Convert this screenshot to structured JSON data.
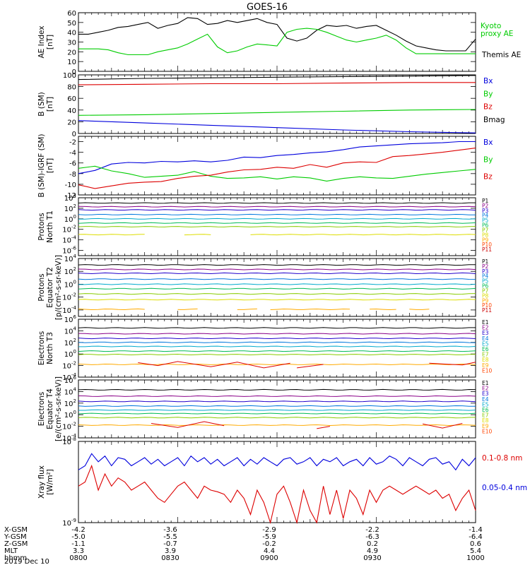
{
  "title": "GOES-16",
  "colors": {
    "black": "#000000",
    "blue": "#0000dd",
    "green": "#00cc00",
    "red": "#dd0000",
    "channels": [
      "#000000",
      "#8a0088",
      "#2200cc",
      "#0077dd",
      "#00aacc",
      "#00bb55",
      "#88cc00",
      "#dddd00",
      "#ffaa00",
      "#ff4400",
      "#cc0000"
    ]
  },
  "footer": {
    "rows": [
      {
        "label": "X-GSM",
        "values": [
          "-4.2",
          "-3.6",
          "-2.9",
          "-2.2",
          "-1.4"
        ]
      },
      {
        "label": "Y-GSM",
        "values": [
          "-5.0",
          "-5.5",
          "-5.9",
          "-6.3",
          "-6.4"
        ]
      },
      {
        "label": "Z-GSM",
        "values": [
          "-1.1",
          "-0.7",
          "-0.2",
          "0.2",
          "0.6"
        ]
      },
      {
        "label": "MLT",
        "values": [
          "3.3",
          "3.9",
          "4.4",
          "4.9",
          "5.4"
        ]
      },
      {
        "label": "hhmm",
        "values": [
          "0800",
          "0830",
          "0900",
          "0930",
          "1000"
        ]
      }
    ],
    "date": "2019 Dec 10"
  },
  "chart_data": [
    {
      "type": "line",
      "ylabel": [
        "AE Index",
        "[nT]"
      ],
      "ylim": [
        0,
        60
      ],
      "yticks": [
        "0",
        "10",
        "20",
        "30",
        "40",
        "50",
        "60"
      ],
      "legend": [
        {
          "text": "Kyoto",
          "color": "#00cc00"
        },
        {
          "text": "proxy AE",
          "color": "#00cc00"
        },
        {
          "text": "Themis AE",
          "color": "#000000"
        }
      ],
      "x": [
        0,
        3,
        6,
        9,
        12,
        15,
        18,
        21,
        24,
        27,
        30,
        33,
        36,
        39,
        42,
        45,
        48,
        51,
        54,
        57,
        60,
        63,
        66,
        69,
        72,
        75,
        78,
        81,
        84,
        87,
        90,
        93,
        96,
        99,
        102,
        105,
        108,
        111,
        114,
        117,
        120
      ],
      "series": [
        {
          "name": "Themis AE",
          "color": "#000000",
          "values": [
            38,
            38,
            40,
            42,
            45,
            46,
            48,
            50,
            44,
            47,
            49,
            55,
            54,
            48,
            49,
            52,
            50,
            52,
            54,
            50,
            48,
            34,
            31,
            34,
            42,
            47,
            46,
            47,
            44,
            46,
            47,
            42,
            37,
            31,
            26,
            24,
            22,
            21,
            21,
            21,
            33
          ]
        },
        {
          "name": "Kyoto proxy AE",
          "color": "#00cc00",
          "values": [
            23,
            23,
            23,
            22,
            19,
            17,
            17,
            17,
            20,
            22,
            24,
            28,
            33,
            38,
            25,
            19,
            21,
            25,
            28,
            27,
            26,
            40,
            43,
            44,
            43,
            40,
            36,
            32,
            30,
            32,
            34,
            37,
            32,
            24,
            18,
            18,
            18,
            18,
            18,
            18,
            18
          ]
        }
      ]
    },
    {
      "type": "line",
      "ylabel": [
        "B (SM)",
        "[nT]"
      ],
      "ylim": [
        0,
        100
      ],
      "yticks": [
        "0",
        "20",
        "40",
        "60",
        "80",
        "100"
      ],
      "legend": [
        {
          "text": "Bx",
          "color": "#0000dd"
        },
        {
          "text": "By",
          "color": "#00cc00"
        },
        {
          "text": "Bz",
          "color": "#dd0000"
        },
        {
          "text": "Bmag",
          "color": "#000000"
        }
      ],
      "x": [
        0,
        20,
        40,
        60,
        80,
        100,
        120
      ],
      "series": [
        {
          "name": "Bmag",
          "color": "#000000",
          "values": [
            92,
            94,
            95,
            96,
            97,
            98,
            99
          ]
        },
        {
          "name": "Bz",
          "color": "#dd0000",
          "values": [
            83,
            84,
            85,
            85,
            86,
            87,
            87
          ]
        },
        {
          "name": "By",
          "color": "#00cc00",
          "values": [
            31,
            32,
            34,
            36,
            38,
            40,
            41
          ]
        },
        {
          "name": "Bx",
          "color": "#0000dd",
          "values": [
            22,
            18,
            14,
            10,
            6,
            3,
            1
          ]
        }
      ]
    },
    {
      "type": "line",
      "ylabel": [
        "B (SM)-IGRF (SM)",
        "[nT]"
      ],
      "ylim": [
        -12,
        -1
      ],
      "yticks": [
        "-12",
        "-10",
        "-8",
        "-6",
        "-4",
        "-2"
      ],
      "legend": [
        {
          "text": "Bx",
          "color": "#0000dd"
        },
        {
          "text": "By",
          "color": "#00cc00"
        },
        {
          "text": "Bz",
          "color": "#dd0000"
        }
      ],
      "x": [
        0,
        5,
        10,
        15,
        20,
        25,
        30,
        35,
        40,
        45,
        50,
        55,
        60,
        65,
        70,
        75,
        80,
        85,
        90,
        95,
        100,
        105,
        110,
        115,
        120
      ],
      "series": [
        {
          "name": "Bx",
          "color": "#0000dd",
          "values": [
            -8,
            -7.4,
            -6.2,
            -5.9,
            -6.0,
            -5.7,
            -5.8,
            -5.6,
            -5.8,
            -5.5,
            -4.9,
            -5.0,
            -4.6,
            -4.4,
            -4.1,
            -3.9,
            -3.5,
            -3.0,
            -2.8,
            -2.6,
            -2.4,
            -2.3,
            -2.2,
            -2.0,
            -2.0
          ]
        },
        {
          "name": "By",
          "color": "#00cc00",
          "values": [
            -7,
            -6.6,
            -7.5,
            -8.0,
            -8.7,
            -8.5,
            -8.3,
            -7.6,
            -8.5,
            -8.9,
            -8.8,
            -8.6,
            -9.0,
            -8.6,
            -8.8,
            -9.4,
            -8.9,
            -8.6,
            -8.8,
            -8.9,
            -8.5,
            -8.1,
            -7.8,
            -7.5,
            -7.2
          ]
        },
        {
          "name": "Bz",
          "color": "#dd0000",
          "values": [
            -10.1,
            -10.8,
            -10.3,
            -9.8,
            -9.6,
            -9.5,
            -8.9,
            -8.5,
            -8.3,
            -7.7,
            -7.3,
            -7.2,
            -6.8,
            -7.0,
            -6.3,
            -6.8,
            -6.0,
            -5.8,
            -5.9,
            -4.8,
            -4.6,
            -4.3,
            -4.0,
            -3.6,
            -3.2
          ]
        }
      ]
    },
    {
      "type": "line",
      "ylabel": [
        "Protons",
        "North T1"
      ],
      "ylog": true,
      "ylim": [
        -7,
        4
      ],
      "yticks": [
        "10^4",
        "10^2",
        "10^0",
        "10^-2",
        "10^-4",
        "10^-6"
      ],
      "ytick_exps": [
        4,
        2,
        0,
        -2,
        -4,
        -6
      ],
      "channels": [
        "P1",
        "P2",
        "P3",
        "P4",
        "P5",
        "P6",
        "P7",
        "P8",
        "P9",
        "P10",
        "P11"
      ],
      "levels_log10": [
        3.0,
        2.3,
        1.7,
        0.8,
        0.0,
        -0.8,
        -1.5,
        -3.0,
        null,
        null,
        null
      ],
      "gaps": [
        {
          "channel": "P8",
          "segments": [
            [
              0,
              20
            ],
            [
              32,
              40
            ],
            [
              52,
              120
            ]
          ]
        }
      ]
    },
    {
      "type": "line",
      "ylabel": [
        "Protons",
        "Equator T2",
        "[p/(cm²-s-sr-keV)]"
      ],
      "ylog": true,
      "ylim": [
        -5,
        4
      ],
      "yticks": [
        "10^4",
        "10^2",
        "10^0",
        "10^-2",
        "10^-4"
      ],
      "ytick_exps": [
        4,
        2,
        0,
        -2,
        -4
      ],
      "channels": [
        "P1",
        "P2",
        "P3",
        "P4",
        "P5",
        "P6",
        "P7",
        "P8",
        "P9",
        "P10",
        "P11"
      ],
      "levels_log10": [
        3.0,
        2.3,
        1.7,
        0.8,
        0.0,
        -0.7,
        -1.5,
        -2.4,
        -3.9,
        null,
        null
      ],
      "gaps": [
        {
          "channel": "P9",
          "segments": [
            [
              0,
              20
            ],
            [
              30,
              36
            ],
            [
              48,
              54
            ],
            [
              58,
              82
            ],
            [
              88,
              96
            ],
            [
              100,
              106
            ]
          ]
        }
      ]
    },
    {
      "type": "line",
      "ylabel": [
        "Electrons",
        "North T3"
      ],
      "ylog": true,
      "ylim": [
        -4,
        6
      ],
      "yticks": [
        "10^6",
        "10^4",
        "10^2",
        "10^0",
        "10^-2",
        "10^-4"
      ],
      "ytick_exps": [
        6,
        4,
        2,
        0,
        -2,
        -4
      ],
      "channels": [
        "E1",
        "E2",
        "E3",
        "E4",
        "E5",
        "E6",
        "E7",
        "E8",
        "E9",
        "E10"
      ],
      "levels_log10": [
        4.5,
        3.5,
        2.7,
        2.0,
        1.3,
        0.5,
        -0.1,
        null,
        -1.8,
        null
      ],
      "segments_E9": [
        [
          [
            18,
            -1.5
          ],
          [
            24,
            -2.0
          ],
          [
            30,
            -1.3
          ],
          [
            40,
            -2.2
          ],
          [
            48,
            -1.4
          ],
          [
            56,
            -2.4
          ],
          [
            64,
            -1.6
          ]
        ],
        [
          [
            66,
            -2.4
          ],
          [
            74,
            -1.8
          ]
        ],
        [
          [
            106,
            -1.6
          ],
          [
            116,
            -1.9
          ],
          [
            120,
            -1.4
          ]
        ]
      ]
    },
    {
      "type": "line",
      "ylabel": [
        "Electrons",
        "Equator T4",
        "[e/(cm²-s-sr-keV)]"
      ],
      "ylog": true,
      "ylim": [
        -4,
        6
      ],
      "yticks": [
        "10^6",
        "10^4",
        "10^2",
        "10^0",
        "10^-2",
        "10^-4"
      ],
      "ytick_exps": [
        6,
        4,
        2,
        0,
        -2,
        -4
      ],
      "channels": [
        "E1",
        "E2",
        "E3",
        "E4",
        "E5",
        "E6",
        "E7",
        "E8",
        "E9",
        "E10"
      ],
      "levels_log10": [
        4.3,
        3.2,
        2.3,
        1.5,
        0.8,
        0.2,
        -0.5,
        null,
        -1.8,
        null
      ],
      "segments_E9": [
        [
          [
            22,
            -1.5
          ],
          [
            30,
            -2.2
          ],
          [
            38,
            -1.2
          ],
          [
            44,
            -1.9
          ]
        ],
        [
          [
            72,
            -2.4
          ],
          [
            76,
            -2.0
          ]
        ],
        [
          [
            104,
            -1.6
          ],
          [
            110,
            -2.3
          ],
          [
            116,
            -1.5
          ]
        ]
      ]
    },
    {
      "type": "line",
      "ylabel": [
        "Xray flux",
        "[W/m²]"
      ],
      "ylog": true,
      "ylim": [
        -9,
        -8
      ],
      "yticks": [
        "10^-8",
        "10^-9"
      ],
      "ytick_exps": [
        -8,
        -9
      ],
      "legend": [
        {
          "text": "0.1-0.8 nm",
          "color": "#dd0000"
        },
        {
          "text": "0.05-0.4 nm",
          "color": "#0000dd"
        }
      ],
      "x": [
        0,
        2,
        4,
        6,
        8,
        10,
        12,
        14,
        16,
        18,
        20,
        22,
        24,
        26,
        28,
        30,
        32,
        34,
        36,
        38,
        40,
        42,
        44,
        46,
        48,
        50,
        52,
        54,
        56,
        58,
        60,
        62,
        64,
        66,
        68,
        70,
        72,
        74,
        76,
        78,
        80,
        82,
        84,
        86,
        88,
        90,
        92,
        94,
        96,
        98,
        100,
        102,
        104,
        106,
        108,
        110,
        112,
        114,
        116,
        118,
        120
      ],
      "series": [
        {
          "name": "0.05-0.4 nm",
          "color": "#0000dd",
          "values": [
            -8.35,
            -8.3,
            -8.15,
            -8.25,
            -8.18,
            -8.3,
            -8.2,
            -8.22,
            -8.3,
            -8.25,
            -8.2,
            -8.28,
            -8.22,
            -8.3,
            -8.25,
            -8.2,
            -8.3,
            -8.18,
            -8.25,
            -8.2,
            -8.28,
            -8.22,
            -8.3,
            -8.25,
            -8.2,
            -8.3,
            -8.22,
            -8.28,
            -8.2,
            -8.25,
            -8.3,
            -8.22,
            -8.2,
            -8.28,
            -8.25,
            -8.2,
            -8.3,
            -8.22,
            -8.25,
            -8.2,
            -8.3,
            -8.25,
            -8.22,
            -8.3,
            -8.2,
            -8.28,
            -8.25,
            -8.18,
            -8.22,
            -8.3,
            -8.2,
            -8.25,
            -8.3,
            -8.22,
            -8.2,
            -8.28,
            -8.25,
            -8.35,
            -8.22,
            -8.3,
            -8.2
          ]
        },
        {
          "name": "0.1-0.8 nm",
          "color": "#dd0000",
          "values": [
            -8.55,
            -8.5,
            -8.3,
            -8.6,
            -8.4,
            -8.55,
            -8.45,
            -8.5,
            -8.6,
            -8.55,
            -8.5,
            -8.6,
            -8.7,
            -8.75,
            -8.65,
            -8.55,
            -8.5,
            -8.6,
            -8.7,
            -8.55,
            -8.6,
            -8.62,
            -8.65,
            -8.75,
            -8.6,
            -8.7,
            -8.9,
            -8.6,
            -8.75,
            -9.0,
            -8.65,
            -8.55,
            -8.75,
            -9.0,
            -8.6,
            -8.85,
            -9.0,
            -8.55,
            -8.9,
            -8.6,
            -8.95,
            -8.6,
            -8.7,
            -8.9,
            -8.6,
            -8.75,
            -8.6,
            -8.55,
            -8.6,
            -8.65,
            -8.6,
            -8.55,
            -8.6,
            -8.65,
            -8.6,
            -8.7,
            -8.65,
            -8.85,
            -8.7,
            -8.6,
            -8.85
          ]
        }
      ]
    }
  ]
}
